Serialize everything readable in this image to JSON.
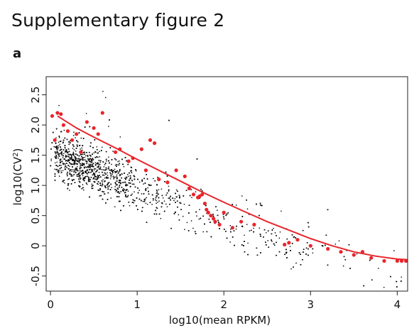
{
  "figure": {
    "title": "Supplementary figure 2",
    "panel": "a"
  },
  "chart_data": {
    "type": "scatter",
    "title": "",
    "xlabel": "log10(mean RPKM)",
    "ylabel_prefix": "log10(CV",
    "ylabel_sup": "2",
    "ylabel_suffix": ")",
    "xlim": [
      -0.05,
      4.12
    ],
    "ylim": [
      -0.75,
      2.8
    ],
    "x_ticks": [
      {
        "value": 0,
        "label": "0"
      },
      {
        "value": 1,
        "label": "1"
      },
      {
        "value": 2,
        "label": "2"
      },
      {
        "value": 3,
        "label": "3"
      },
      {
        "value": 4,
        "label": "4"
      }
    ],
    "y_ticks": [
      {
        "value": -0.5,
        "label": "-0.5"
      },
      {
        "value": 0,
        "label": "0"
      },
      {
        "value": 0.5,
        "label": "0.5"
      },
      {
        "value": 1,
        "label": "1.0"
      },
      {
        "value": 1.5,
        "label": "1.5"
      },
      {
        "value": 2,
        "label": "2.0"
      },
      {
        "value": 2.5,
        "label": "2.5"
      }
    ],
    "grid": false,
    "colors": {
      "points": "#111111",
      "highlight": "#e8252b",
      "fit": "#e8252b"
    },
    "background_series": {
      "name": "",
      "color": "#111111",
      "approx_count": 6000,
      "trend": {
        "at_x0": 1.55,
        "slope": -0.6,
        "curvature": 0.02
      },
      "x_range": [
        0.0,
        4.05
      ],
      "ceiling": 2.75
    },
    "fit_curve": {
      "color": "#e8252b",
      "x": [
        0.08,
        0.3,
        0.5,
        0.75,
        1.0,
        1.25,
        1.5,
        1.75,
        2.0,
        2.25,
        2.5,
        2.75,
        3.0,
        3.25,
        3.5,
        3.75,
        4.0,
        4.12
      ],
      "y": [
        2.15,
        1.95,
        1.8,
        1.62,
        1.43,
        1.25,
        1.07,
        0.89,
        0.72,
        0.56,
        0.4,
        0.26,
        0.12,
        0.0,
        -0.1,
        -0.17,
        -0.22,
        -0.23
      ]
    },
    "highlighted_points": {
      "color": "#e8252b",
      "x": [
        0.02,
        0.05,
        0.08,
        0.12,
        0.15,
        0.2,
        0.25,
        0.3,
        0.35,
        0.42,
        0.5,
        0.55,
        0.6,
        0.75,
        0.8,
        0.9,
        0.95,
        1.05,
        1.1,
        1.15,
        1.2,
        1.25,
        1.35,
        1.45,
        1.55,
        1.6,
        1.65,
        1.7,
        1.72,
        1.75,
        1.78,
        1.8,
        1.82,
        1.85,
        1.88,
        1.9,
        1.95,
        2.0,
        2.1,
        2.2,
        2.35,
        2.7,
        2.75,
        2.85,
        3.0,
        3.2,
        3.35,
        3.5,
        3.6,
        3.7,
        3.85,
        4.0,
        4.05,
        4.1
      ],
      "y": [
        2.15,
        1.75,
        2.2,
        2.18,
        2.0,
        1.9,
        1.75,
        1.85,
        1.55,
        2.05,
        1.95,
        1.85,
        2.2,
        1.55,
        1.6,
        1.4,
        1.45,
        1.6,
        1.25,
        1.75,
        1.7,
        1.1,
        1.05,
        1.25,
        1.15,
        0.95,
        0.85,
        0.8,
        0.82,
        0.85,
        0.7,
        0.6,
        0.55,
        0.5,
        0.45,
        0.4,
        0.35,
        0.55,
        0.3,
        0.4,
        0.35,
        0.02,
        0.05,
        0.1,
        0.0,
        -0.05,
        -0.1,
        -0.15,
        -0.1,
        -0.2,
        -0.25,
        -0.25,
        -0.25,
        -0.25
      ]
    }
  }
}
